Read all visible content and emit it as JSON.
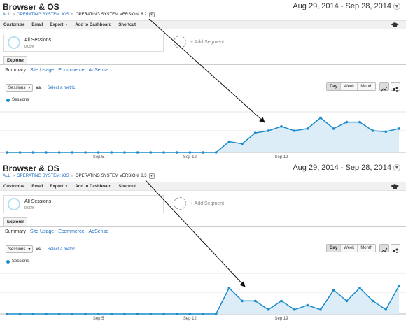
{
  "colors": {
    "accent": "#1a8ccb",
    "link": "#1a6bc4",
    "area": "#dcedf8"
  },
  "panels": [
    {
      "title": "Browser & OS",
      "date_range": "Aug 29, 2014 - Sep 28, 2014",
      "breadcrumbs": [
        "ALL",
        "OPERATING SYSTEM: iOS",
        "OPERATING SYSTEM VERSION: 8.2"
      ],
      "toolbar": [
        "Customize",
        "Email",
        "Export",
        "Add to Dashboard",
        "Shortcut"
      ],
      "segments": {
        "name": "All Sessions",
        "pct": "0.05%",
        "add": "+ Add Segment"
      },
      "tab": "Explorer",
      "subtabs": [
        "Summary",
        "Site Usage",
        "Ecommerce",
        "AdSense"
      ],
      "metric": "Sessions",
      "vs": "vs.",
      "select_metric": "Select a metric",
      "granularity": [
        "Day",
        "Week",
        "Month"
      ],
      "legend": "Sessions"
    },
    {
      "title": "Browser & OS",
      "date_range": "Aug 29, 2014 - Sep 28, 2014",
      "breadcrumbs": [
        "ALL",
        "OPERATING SYSTEM: iOS",
        "OPERATING SYSTEM VERSION: 8.3"
      ],
      "toolbar": [
        "Customize",
        "Email",
        "Export",
        "Add to Dashboard",
        "Shortcut"
      ],
      "segments": {
        "name": "All Sessions",
        "pct": "0.00%",
        "add": "+ Add Segment"
      },
      "tab": "Explorer",
      "subtabs": [
        "Summary",
        "Site Usage",
        "Ecommerce",
        "AdSense"
      ],
      "metric": "Sessions",
      "vs": "vs.",
      "select_metric": "Select a metric",
      "granularity": [
        "Day",
        "Week",
        "Month"
      ],
      "legend": "Sessions"
    }
  ],
  "icons": {
    "toolbar_right": "graduation-cap-icon",
    "motion": "motion-chart-icon",
    "line": "line-chart-icon"
  },
  "chart_data": [
    {
      "type": "area",
      "series": [
        {
          "name": "Sessions",
          "values": [
            0,
            0,
            0,
            0,
            0,
            0,
            0,
            0,
            0,
            0,
            0,
            0,
            0,
            0,
            0,
            0,
            0,
            0.25,
            0.2,
            0.45,
            0.5,
            0.6,
            0.5,
            0.55,
            0.8,
            0.55,
            0.7,
            0.7,
            0.5,
            0.48,
            0.55
          ]
        }
      ],
      "x_ticks": [
        {
          "index": 7,
          "label": "Sep 5"
        },
        {
          "index": 14,
          "label": "Sep 12"
        },
        {
          "index": 21,
          "label": "Sep 19"
        }
      ],
      "grid": true
    },
    {
      "type": "area",
      "series": [
        {
          "name": "Sessions",
          "values": [
            0,
            0,
            0,
            0,
            0,
            0,
            0,
            0,
            0,
            0,
            0,
            0,
            0,
            0,
            0,
            0,
            0,
            0.6,
            0.3,
            0.3,
            0.1,
            0.3,
            0.1,
            0.2,
            0.1,
            0.55,
            0.3,
            0.6,
            0.3,
            0.1,
            0.65
          ]
        }
      ],
      "x_ticks": [
        {
          "index": 7,
          "label": "Sep 5"
        },
        {
          "index": 14,
          "label": "Sep 12"
        },
        {
          "index": 21,
          "label": "Sep 19"
        }
      ],
      "grid": true
    }
  ]
}
